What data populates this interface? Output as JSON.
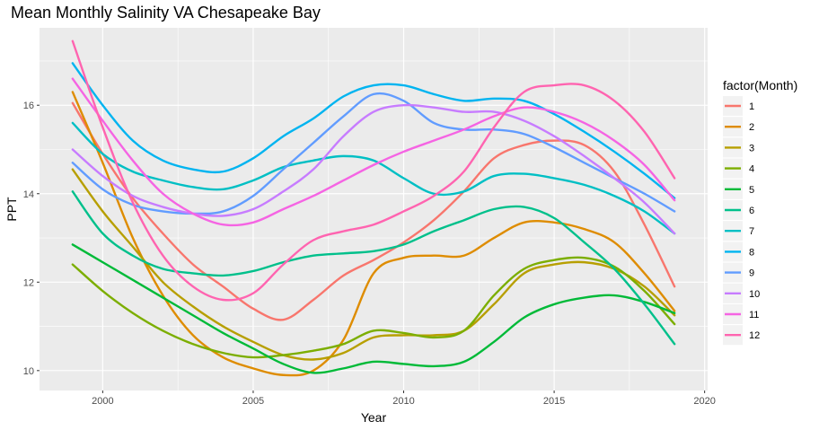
{
  "chart_data": {
    "type": "line",
    "title": "Mean Monthly Salinity VA Chesapeake Bay",
    "xlabel": "Year",
    "ylabel": "PPT",
    "xlim": [
      1997.9,
      2020.1
    ],
    "ylim": [
      9.55,
      17.75
    ],
    "x_ticks": [
      2000,
      2005,
      2010,
      2015,
      2020
    ],
    "x_tick_labels": [
      "2000",
      "2005",
      "2010",
      "2015",
      "2020"
    ],
    "y_ticks": [
      10,
      12,
      14,
      16
    ],
    "y_tick_labels": [
      "10",
      "12",
      "14",
      "16"
    ],
    "grid": true,
    "panel_background": "#EBEBEB",
    "legend": {
      "title": "factor(Month)",
      "position": "right"
    },
    "x": [
      1999,
      2000,
      2001,
      2002,
      2003,
      2004,
      2005,
      2006,
      2007,
      2008,
      2009,
      2010,
      2011,
      2012,
      2013,
      2014,
      2015,
      2016,
      2017,
      2018,
      2019
    ],
    "series": [
      {
        "name": "1",
        "color": "#F8766D",
        "values": [
          16.05,
          14.9,
          13.9,
          13.1,
          12.4,
          11.9,
          11.4,
          11.15,
          11.6,
          12.15,
          12.5,
          12.9,
          13.4,
          14.05,
          14.8,
          15.1,
          15.2,
          15.1,
          14.5,
          13.3,
          11.9
        ]
      },
      {
        "name": "2",
        "color": "#DE8C00",
        "values": [
          16.3,
          14.7,
          13.0,
          11.7,
          10.8,
          10.3,
          10.05,
          9.9,
          10.0,
          10.7,
          12.2,
          12.55,
          12.6,
          12.6,
          13.0,
          13.35,
          13.35,
          13.2,
          12.9,
          12.2,
          11.35
        ]
      },
      {
        "name": "3",
        "color": "#B79F00",
        "values": [
          14.55,
          13.6,
          12.8,
          12.0,
          11.45,
          11.0,
          10.65,
          10.35,
          10.25,
          10.4,
          10.75,
          10.8,
          10.8,
          10.9,
          11.5,
          12.2,
          12.4,
          12.45,
          12.3,
          11.9,
          11.25
        ]
      },
      {
        "name": "4",
        "color": "#7CAE00",
        "values": [
          12.4,
          11.8,
          11.3,
          10.9,
          10.6,
          10.4,
          10.3,
          10.35,
          10.45,
          10.6,
          10.9,
          10.85,
          10.75,
          10.9,
          11.7,
          12.3,
          12.5,
          12.55,
          12.35,
          11.8,
          11.05
        ]
      },
      {
        "name": "5",
        "color": "#00BA38",
        "values": [
          12.85,
          12.45,
          12.05,
          11.65,
          11.25,
          10.85,
          10.5,
          10.15,
          9.95,
          10.05,
          10.2,
          10.15,
          10.1,
          10.2,
          10.65,
          11.2,
          11.5,
          11.65,
          11.7,
          11.55,
          11.3
        ]
      },
      {
        "name": "6",
        "color": "#00C08B",
        "values": [
          14.05,
          13.1,
          12.6,
          12.3,
          12.2,
          12.15,
          12.25,
          12.45,
          12.6,
          12.65,
          12.7,
          12.85,
          13.15,
          13.4,
          13.65,
          13.7,
          13.45,
          12.9,
          12.3,
          11.5,
          10.6
        ]
      },
      {
        "name": "7",
        "color": "#00BFC4",
        "values": [
          15.6,
          14.9,
          14.5,
          14.3,
          14.15,
          14.1,
          14.3,
          14.6,
          14.75,
          14.85,
          14.75,
          14.35,
          14.0,
          14.05,
          14.4,
          14.45,
          14.35,
          14.2,
          13.95,
          13.6,
          13.1
        ]
      },
      {
        "name": "8",
        "color": "#00B4F0",
        "values": [
          16.95,
          16.0,
          15.2,
          14.75,
          14.55,
          14.5,
          14.8,
          15.3,
          15.7,
          16.2,
          16.45,
          16.45,
          16.25,
          16.1,
          16.15,
          16.1,
          15.8,
          15.4,
          14.95,
          14.45,
          13.9
        ]
      },
      {
        "name": "9",
        "color": "#619CFF",
        "values": [
          14.7,
          14.1,
          13.75,
          13.6,
          13.55,
          13.6,
          13.95,
          14.55,
          15.15,
          15.75,
          16.25,
          16.1,
          15.6,
          15.45,
          15.45,
          15.35,
          15.05,
          14.7,
          14.35,
          14.0,
          13.6
        ]
      },
      {
        "name": "10",
        "color": "#C77CFF",
        "values": [
          15.0,
          14.4,
          13.95,
          13.7,
          13.55,
          13.5,
          13.65,
          14.05,
          14.55,
          15.3,
          15.85,
          16.0,
          15.95,
          15.85,
          15.85,
          15.65,
          15.3,
          14.85,
          14.35,
          13.8,
          13.1
        ]
      },
      {
        "name": "11",
        "color": "#F564E3",
        "values": [
          16.6,
          15.65,
          14.75,
          14.0,
          13.55,
          13.3,
          13.35,
          13.65,
          13.95,
          14.3,
          14.65,
          14.95,
          15.2,
          15.45,
          15.75,
          15.95,
          15.85,
          15.6,
          15.2,
          14.65,
          13.85
        ]
      },
      {
        "name": "12",
        "color": "#FF64B0",
        "values": [
          17.45,
          15.5,
          13.8,
          12.6,
          11.9,
          11.6,
          11.75,
          12.4,
          12.95,
          13.15,
          13.3,
          13.6,
          13.95,
          14.5,
          15.5,
          16.3,
          16.45,
          16.45,
          16.1,
          15.4,
          14.35
        ]
      }
    ]
  }
}
